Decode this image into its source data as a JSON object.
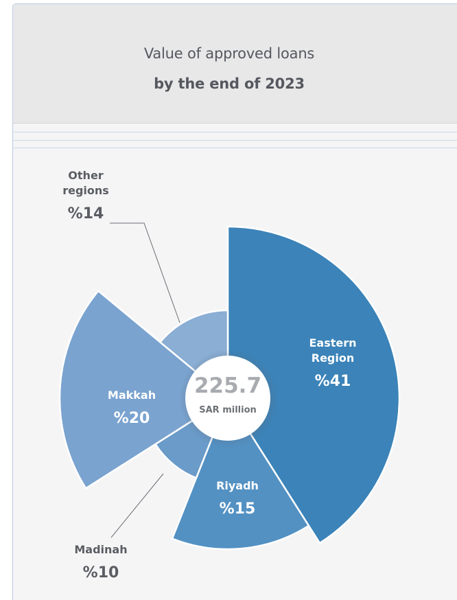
{
  "header": {
    "title_line1": "Value of approved loans",
    "title_line2": "by the end of 2023"
  },
  "center": {
    "value": "225.7",
    "unit": "SAR million"
  },
  "colors": {
    "eastern": "#3b83b8",
    "riyadh": "#5391c3",
    "madinah": "#6a9bc9",
    "makkah": "#7aa3cf",
    "other": "#8aaed4"
  },
  "chart_data": {
    "type": "pie",
    "variant": "polar-area (radius varies by slice)",
    "total": 225.7,
    "total_unit": "SAR million",
    "slices": [
      {
        "id": "eastern",
        "name_lines": [
          "Eastern",
          "Region"
        ],
        "percent_label": "%41",
        "value": 41
      },
      {
        "id": "riyadh",
        "name_lines": [
          "Riyadh"
        ],
        "percent_label": "%15",
        "value": 15
      },
      {
        "id": "madinah",
        "name_lines": [
          "Madinah"
        ],
        "percent_label": "%10",
        "value": 10
      },
      {
        "id": "makkah",
        "name_lines": [
          "Makkah"
        ],
        "percent_label": "%20",
        "value": 20
      },
      {
        "id": "other",
        "name_lines": [
          "Other",
          "regions"
        ],
        "percent_label": "%14",
        "value": 14
      }
    ]
  }
}
